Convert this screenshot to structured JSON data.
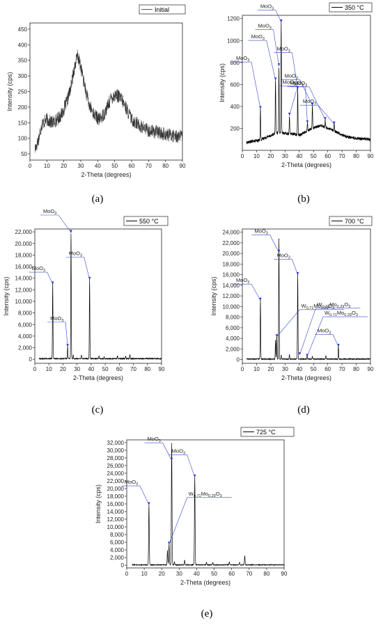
{
  "chart_data": [
    {
      "type": "line",
      "legend": "Initial",
      "legend_placement": "top-right",
      "caption": "(a)",
      "xlabel": "2-Theta (degrees)",
      "ylabel": "Intensity (cps)",
      "xlim": [
        0,
        90
      ],
      "ylim": [
        30,
        470
      ],
      "xticks": [
        0,
        10,
        20,
        30,
        40,
        50,
        60,
        70,
        80,
        90
      ],
      "yticks": [
        50,
        100,
        150,
        200,
        250,
        300,
        350,
        400,
        450
      ],
      "ytick_labels": [
        "50",
        "100",
        "150",
        "200",
        "250",
        "300",
        "350",
        "400",
        "450"
      ],
      "noise": 22,
      "profile": [
        [
          3,
          65
        ],
        [
          5,
          95
        ],
        [
          7,
          145
        ],
        [
          10,
          160
        ],
        [
          13,
          150
        ],
        [
          16,
          160
        ],
        [
          19,
          180
        ],
        [
          22,
          220
        ],
        [
          24,
          260
        ],
        [
          26,
          320
        ],
        [
          28,
          365
        ],
        [
          30,
          330
        ],
        [
          32,
          275
        ],
        [
          35,
          205
        ],
        [
          38,
          175
        ],
        [
          41,
          160
        ],
        [
          44,
          180
        ],
        [
          48,
          230
        ],
        [
          51,
          240
        ],
        [
          54,
          225
        ],
        [
          57,
          195
        ],
        [
          60,
          160
        ],
        [
          65,
          140
        ],
        [
          70,
          125
        ],
        [
          75,
          120
        ],
        [
          80,
          112
        ],
        [
          85,
          108
        ],
        [
          90,
          105
        ]
      ],
      "peaks": [],
      "annotations": []
    },
    {
      "type": "line",
      "legend": "350 °C",
      "legend_placement": "top-right",
      "caption": "(b)",
      "xlabel": "2-Theta (degrees)",
      "ylabel": "Intensity (cps)",
      "xlim": [
        0,
        90
      ],
      "ylim": [
        0,
        1230
      ],
      "xticks": [
        0,
        10,
        20,
        30,
        40,
        50,
        60,
        70,
        80,
        90
      ],
      "yticks": [
        200,
        400,
        600,
        800,
        1000,
        1200
      ],
      "ytick_labels": [
        "200",
        "400",
        "600",
        "800",
        "1000",
        "1200"
      ],
      "noise": 14,
      "profile": [
        [
          3,
          70
        ],
        [
          8,
          85
        ],
        [
          12,
          90
        ],
        [
          16,
          115
        ],
        [
          20,
          135
        ],
        [
          24,
          160
        ],
        [
          28,
          160
        ],
        [
          32,
          150
        ],
        [
          36,
          150
        ],
        [
          40,
          140
        ],
        [
          44,
          165
        ],
        [
          48,
          195
        ],
        [
          52,
          215
        ],
        [
          56,
          225
        ],
        [
          60,
          200
        ],
        [
          65,
          175
        ],
        [
          70,
          140
        ],
        [
          75,
          120
        ],
        [
          80,
          110
        ],
        [
          85,
          105
        ],
        [
          90,
          100
        ]
      ],
      "peaks": [
        [
          12.7,
          380
        ],
        [
          23.3,
          640
        ],
        [
          25.7,
          770
        ],
        [
          27.3,
          1170
        ],
        [
          33.1,
          320
        ],
        [
          38.9,
          560
        ],
        [
          45.7,
          250
        ],
        [
          49.2,
          410
        ],
        [
          58.2,
          280
        ],
        [
          64.5,
          240
        ]
      ],
      "annotations": [
        {
          "label": "MoO",
          "sub": "3",
          "x": 12.7,
          "y": 380
        },
        {
          "label": "MoO",
          "sub": "3",
          "x": 23.3,
          "y": 640
        },
        {
          "label": "MoO",
          "sub": "3",
          "x": 25.7,
          "y": 770
        },
        {
          "label": "MoO",
          "sub": "3",
          "x": 27.3,
          "y": 1170
        },
        {
          "label": "MoO",
          "sub": "3",
          "x": 33.1,
          "y": 320
        },
        {
          "label": "MoO",
          "sub": "3",
          "x": 38.9,
          "y": 560
        },
        {
          "label": "MoO",
          "sub": "3",
          "x": 45.7,
          "y": 250
        },
        {
          "label": "MoO",
          "sub": "3",
          "x": 49.2,
          "y": 410
        },
        {
          "label": "MoO",
          "sub": "3",
          "x": 58.2,
          "y": 280
        },
        {
          "label": "MoO",
          "sub": "3",
          "x": 64.5,
          "y": 240
        }
      ]
    },
    {
      "type": "line",
      "legend": "550 °C",
      "legend_placement": "top-right",
      "caption": "(c)",
      "xlabel": "2-Theta (degrees)",
      "ylabel": "Intensity (cps)",
      "xlim": [
        0,
        90
      ],
      "ylim": [
        -700,
        22500
      ],
      "xticks": [
        0,
        10,
        20,
        30,
        40,
        50,
        60,
        70,
        80,
        90
      ],
      "yticks": [
        0,
        2000,
        4000,
        6000,
        8000,
        10000,
        12000,
        14000,
        16000,
        18000,
        20000,
        22000
      ],
      "ytick_labels": [
        "0",
        "2,000",
        "4,000",
        "6,000",
        "8,000",
        "10,000",
        "12,000",
        "14,000",
        "16,000",
        "18,000",
        "20,000",
        "22,000"
      ],
      "noise": 90,
      "profile": [
        [
          3,
          100
        ],
        [
          90,
          100
        ]
      ],
      "peaks": [
        [
          12.7,
          13000
        ],
        [
          23.3,
          2200
        ],
        [
          25.7,
          21900
        ],
        [
          27.3,
          700
        ],
        [
          33.1,
          650
        ],
        [
          38.9,
          13800
        ],
        [
          45.6,
          500
        ],
        [
          49.2,
          400
        ],
        [
          58.7,
          550
        ],
        [
          64.5,
          500
        ],
        [
          67.5,
          750
        ]
      ],
      "annotations": [
        {
          "label": "MoO",
          "sub": "3",
          "x": 12.7,
          "y": 13000
        },
        {
          "label": "MoO",
          "sub": "3",
          "x": 23.3,
          "y": 2200
        },
        {
          "label": "MoO",
          "sub": "3",
          "x": 25.7,
          "y": 21900
        },
        {
          "label": "MoO",
          "sub": "3",
          "x": 38.9,
          "y": 13800
        }
      ]
    },
    {
      "type": "line",
      "legend": "700 °C",
      "legend_placement": "top-right",
      "caption": "(d)",
      "xlabel": "2-Theta (degrees)",
      "ylabel": "Intensity (cps)",
      "xlim": [
        0,
        90
      ],
      "ylim": [
        -700,
        24600
      ],
      "xticks": [
        0,
        10,
        20,
        30,
        40,
        50,
        60,
        70,
        80,
        90
      ],
      "yticks": [
        0,
        2000,
        4000,
        6000,
        8000,
        10000,
        12000,
        14000,
        16000,
        18000,
        20000,
        22000,
        24000
      ],
      "ytick_labels": [
        "0",
        "2,000",
        "4,000",
        "6,000",
        "8,000",
        "10,000",
        "12,000",
        "14,000",
        "16,000",
        "18,000",
        "20,000",
        "22,000",
        "24,000"
      ],
      "noise": 100,
      "profile": [
        [
          3,
          100
        ],
        [
          90,
          100
        ]
      ],
      "peaks": [
        [
          12.7,
          11200
        ],
        [
          23.3,
          3600
        ],
        [
          24.2,
          4300
        ],
        [
          25.7,
          22700
        ],
        [
          27.3,
          800
        ],
        [
          33.1,
          900
        ],
        [
          38.9,
          16000
        ],
        [
          45.5,
          900
        ],
        [
          49.2,
          600
        ],
        [
          58.7,
          700
        ],
        [
          67.5,
          2500
        ]
      ],
      "annotations": [
        {
          "label": "MoO",
          "sub": "3",
          "x": 12.7,
          "y": 11200
        },
        {
          "label": "MoO",
          "sub": "3",
          "x": 25.7,
          "y": 20200
        },
        {
          "label": "MoO",
          "sub": "3",
          "x": 38.9,
          "y": 16000
        },
        {
          "label": "W",
          "sub": "0.71",
          "label2": "Mo",
          "sub2": "0.29",
          "label3": "O",
          "sub3": "3",
          "x": 24.2,
          "y": 4300
        },
        {
          "label": "W",
          "sub": "0.71",
          "label2": "Mo",
          "sub2": "0.29",
          "label3": "O",
          "sub3": "3",
          "x": 40.3,
          "y": 900
        },
        {
          "label": "W",
          "sub": "0.71",
          "label2": "Mo",
          "sub2": "0.29",
          "label3": "O",
          "sub3": "3",
          "x": 45.5,
          "y": 600
        },
        {
          "label": "MoO",
          "sub": "3",
          "x": 67.5,
          "y": 2500
        }
      ]
    },
    {
      "type": "line",
      "legend": "725 °C",
      "legend_placement": "top-right",
      "caption": "(e)",
      "xlabel": "2-Theta (degrees)",
      "ylabel": "Intensity (cps)",
      "xlim": [
        0,
        90
      ],
      "ylim": [
        -700,
        32700
      ],
      "xticks": [
        0,
        10,
        20,
        30,
        40,
        50,
        60,
        70,
        80,
        90
      ],
      "yticks": [
        0,
        2000,
        4000,
        6000,
        8000,
        10000,
        12000,
        14000,
        16000,
        18000,
        20000,
        22000,
        24000,
        26000,
        28000,
        30000,
        32000
      ],
      "ytick_labels": [
        "0",
        "2,000",
        "4,000",
        "6,000",
        "8,000",
        "10,000",
        "12,000",
        "14,000",
        "16,000",
        "18,000",
        "20,000",
        "22,000",
        "24,000",
        "26,000",
        "28,000",
        "30,000",
        "32,000"
      ],
      "noise": 110,
      "profile": [
        [
          3,
          100
        ],
        [
          90,
          100
        ]
      ],
      "peaks": [
        [
          12.7,
          15800
        ],
        [
          23.3,
          3800
        ],
        [
          24.2,
          5500
        ],
        [
          25.7,
          31700
        ],
        [
          27.3,
          800
        ],
        [
          33.1,
          1200
        ],
        [
          38.9,
          23000
        ],
        [
          45.6,
          700
        ],
        [
          49.2,
          600
        ],
        [
          58.7,
          800
        ],
        [
          64.5,
          700
        ],
        [
          67.5,
          2400
        ]
      ],
      "annotations": [
        {
          "label": "MoO",
          "sub": "3",
          "x": 12.7,
          "y": 15800
        },
        {
          "label": "MoO",
          "sub": "3",
          "x": 25.7,
          "y": 27400
        },
        {
          "label": "MoO",
          "sub": "3",
          "x": 38.9,
          "y": 23000
        },
        {
          "label": "W",
          "sub": "0.71",
          "label2": "Mo",
          "sub2": "0.29",
          "label3": "O",
          "sub3": "3",
          "x": 24.2,
          "y": 5500
        }
      ]
    }
  ]
}
